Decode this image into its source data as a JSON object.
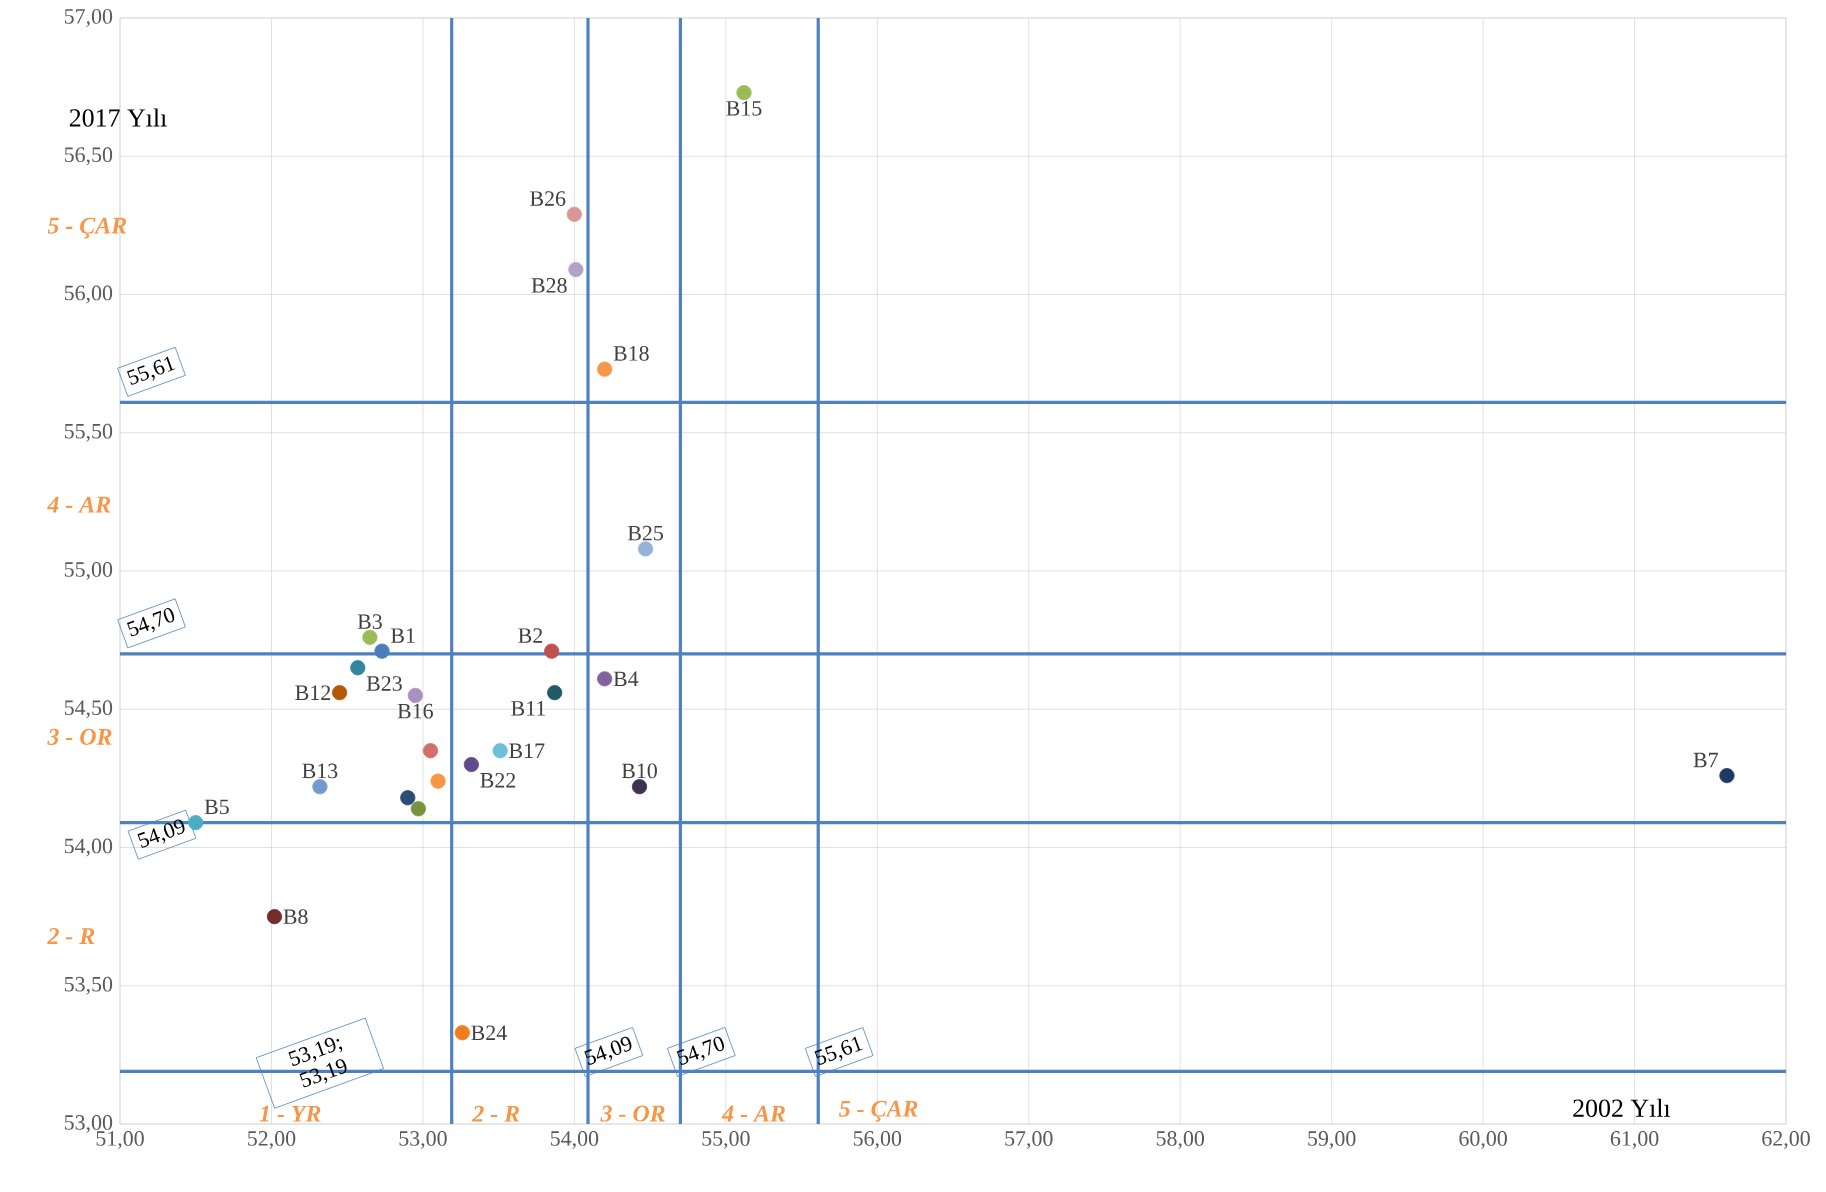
{
  "chart_data": {
    "type": "scatter",
    "xlabel": "2002 Yılı",
    "ylabel": "2017 Yılı",
    "xlim": [
      51,
      62
    ],
    "ylim": [
      53,
      57
    ],
    "xticks": [
      {
        "value": 51,
        "label": "51,00"
      },
      {
        "value": 52,
        "label": "52,00"
      },
      {
        "value": 53,
        "label": "53,00"
      },
      {
        "value": 54,
        "label": "54,00"
      },
      {
        "value": 55,
        "label": "55,00"
      },
      {
        "value": 56,
        "label": "56,00"
      },
      {
        "value": 57,
        "label": "57,00"
      },
      {
        "value": 58,
        "label": "58,00"
      },
      {
        "value": 59,
        "label": "59,00"
      },
      {
        "value": 60,
        "label": "60,00"
      },
      {
        "value": 61,
        "label": "61,00"
      },
      {
        "value": 62,
        "label": "62,00"
      }
    ],
    "yticks": [
      {
        "value": 53,
        "label": "53,00"
      },
      {
        "value": 53.5,
        "label": "53,50"
      },
      {
        "value": 54,
        "label": "54,00"
      },
      {
        "value": 54.5,
        "label": "54,50"
      },
      {
        "value": 55,
        "label": "55,00"
      },
      {
        "value": 55.5,
        "label": "55,50"
      },
      {
        "value": 56,
        "label": "56,00"
      },
      {
        "value": 56.5,
        "label": "56,50"
      },
      {
        "value": 57,
        "label": "57,00"
      }
    ],
    "grid": true,
    "legend": false,
    "marker": "circle",
    "series": [
      {
        "name": "B1",
        "color": "#4a7ebb",
        "x": [
          52.73
        ],
        "values": [
          54.71
        ]
      },
      {
        "name": "B2",
        "color": "#c0504d",
        "x": [
          53.85
        ],
        "values": [
          54.71
        ]
      },
      {
        "name": "B3",
        "color": "#9bbb59",
        "x": [
          52.65
        ],
        "values": [
          54.76
        ]
      },
      {
        "name": "B4",
        "color": "#8064a2",
        "x": [
          54.2
        ],
        "values": [
          54.61
        ]
      },
      {
        "name": "B5",
        "color": "#4bacc6",
        "x": [
          51.5
        ],
        "values": [
          54.09
        ]
      },
      {
        "name": "B7",
        "color": "#1f3864",
        "x": [
          61.61
        ],
        "values": [
          54.26
        ]
      },
      {
        "name": "B8",
        "color": "#772c2a",
        "x": [
          52.02
        ],
        "values": [
          53.75
        ]
      },
      {
        "name": "B10",
        "color": "#3f3151",
        "x": [
          54.43
        ],
        "values": [
          54.22
        ]
      },
      {
        "name": "B11",
        "color": "#215968",
        "x": [
          53.87
        ],
        "values": [
          54.56
        ]
      },
      {
        "name": "B12",
        "color": "#b65708",
        "x": [
          52.45
        ],
        "values": [
          54.56
        ]
      },
      {
        "name": "B13",
        "color": "#729aca",
        "x": [
          52.32
        ],
        "values": [
          54.22
        ]
      },
      {
        "name": "B15",
        "color": "#9bbb59",
        "x": [
          55.12
        ],
        "values": [
          56.73
        ]
      },
      {
        "name": "B16",
        "color": "#a992c0",
        "x": [
          52.95
        ],
        "values": [
          54.55
        ]
      },
      {
        "name": "B17",
        "color": "#6ec0d8",
        "x": [
          53.51
        ],
        "values": [
          54.35
        ]
      },
      {
        "name": "B18",
        "color": "#f79646",
        "x": [
          54.2
        ],
        "values": [
          55.73
        ]
      },
      {
        "name": "B22",
        "color": "#5f4b8b",
        "x": [
          53.32
        ],
        "values": [
          54.3
        ]
      },
      {
        "name": "B23",
        "color": "#31859c",
        "x": [
          52.57
        ],
        "values": [
          54.65
        ]
      },
      {
        "name": "B24",
        "color": "#f07d1a",
        "x": [
          53.26
        ],
        "values": [
          53.33
        ]
      },
      {
        "name": "B25",
        "color": "#95b3d7",
        "x": [
          54.47
        ],
        "values": [
          55.08
        ]
      },
      {
        "name": "B26",
        "color": "#d99694",
        "x": [
          54.0
        ],
        "values": [
          56.29
        ]
      },
      {
        "name": "B28",
        "color": "#b3a2c7",
        "x": [
          54.01
        ],
        "values": [
          56.09
        ]
      },
      {
        "color": "#d46e6b",
        "x": [
          53.05
        ],
        "values": [
          54.35
        ]
      },
      {
        "color": "#f79646",
        "x": [
          53.1
        ],
        "values": [
          54.24
        ]
      },
      {
        "color": "#2c4d75",
        "x": [
          52.9
        ],
        "values": [
          54.18
        ]
      },
      {
        "color": "#77933c",
        "x": [
          52.97
        ],
        "values": [
          54.14
        ]
      }
    ],
    "ref_lines": [
      {
        "axis": "y",
        "value": 55.61,
        "label": "55,61",
        "color": "#4f81bd"
      },
      {
        "axis": "y",
        "value": 54.7,
        "label": "54,70",
        "color": "#4f81bd"
      },
      {
        "axis": "y",
        "value": 54.09,
        "label": "54,09",
        "color": "#4f81bd"
      },
      {
        "axis": "y",
        "value": 53.19,
        "label": "53,19; 53,19",
        "color": "#4f81bd"
      },
      {
        "axis": "x",
        "value": 53.19,
        "color": "#4f81bd"
      },
      {
        "axis": "x",
        "value": 54.09,
        "label": "54,09",
        "color": "#4f81bd"
      },
      {
        "axis": "x",
        "value": 54.7,
        "label": "54,70",
        "color": "#4f81bd"
      },
      {
        "axis": "x",
        "value": 55.61,
        "label": "55,61",
        "color": "#4f81bd"
      }
    ],
    "annotations": [
      "5 - ÇAR",
      "4 - AR",
      "3 - OR",
      "2 - R",
      "1 - YR",
      "2 - R",
      "3 - OR",
      "4 - AR",
      "5 - ÇAR"
    ]
  }
}
